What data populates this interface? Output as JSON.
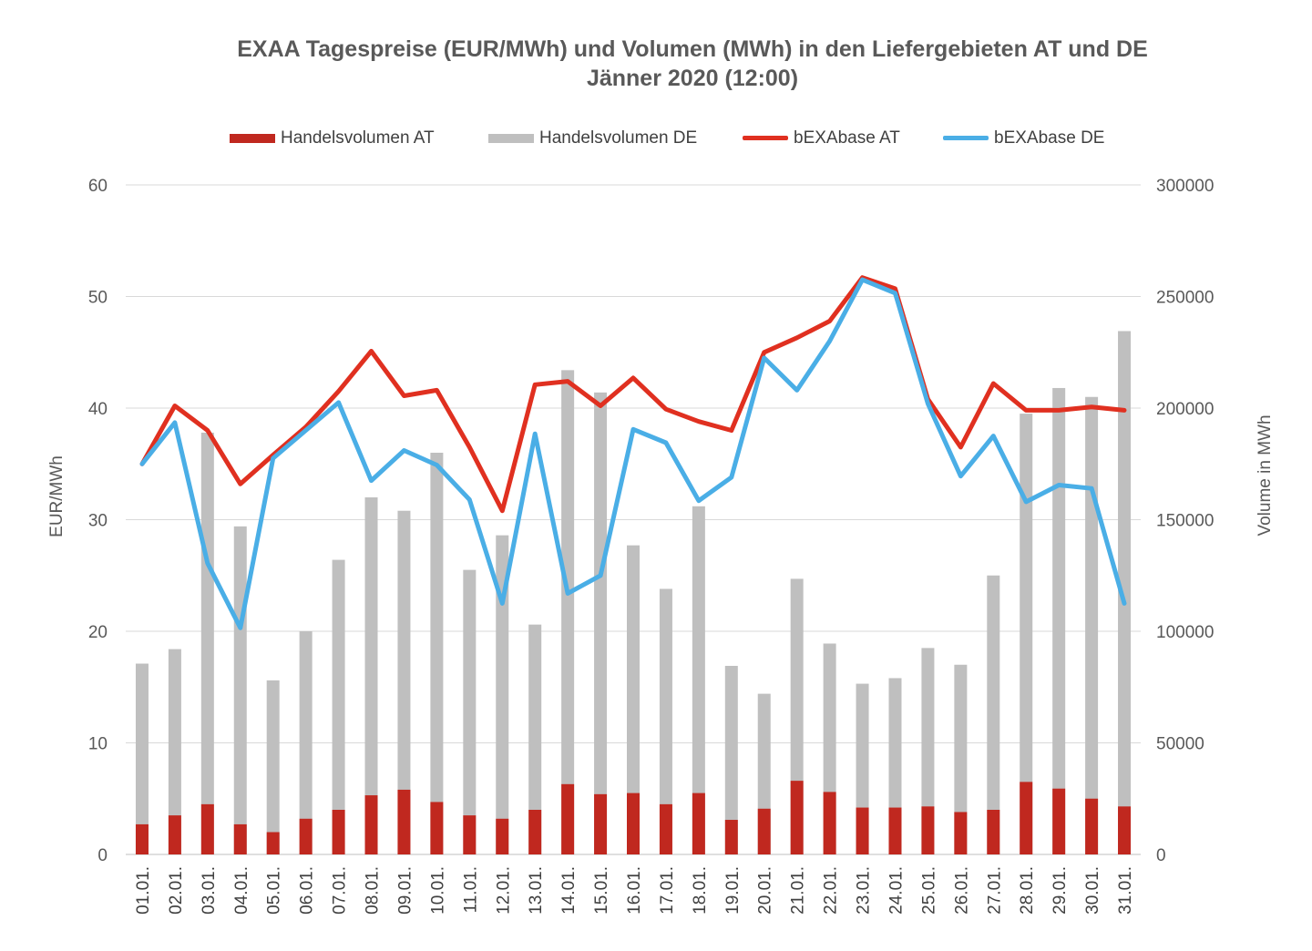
{
  "chart_data": {
    "type": "bar",
    "title": "EXAA Tagespreise (EUR/MWh) und Volumen (MWh) in den Liefergebieten AT und DE",
    "subtitle": "Jänner 2020 (12:00)",
    "ylabel": "EUR/MWh",
    "y2label": "Volume in MWh",
    "ylim": [
      0,
      60
    ],
    "y2lim": [
      0,
      300000
    ],
    "yticks": [
      "0",
      "10",
      "20",
      "30",
      "40",
      "50",
      "60"
    ],
    "y2ticks": [
      "0",
      "50000",
      "100000",
      "150000",
      "200000",
      "250000",
      "300000"
    ],
    "grid": "horizontal",
    "legend_position": "top",
    "categories": [
      "01.01.",
      "02.01.",
      "03.01.",
      "04.01.",
      "05.01.",
      "06.01.",
      "07.01.",
      "08.01.",
      "09.01.",
      "10.01.",
      "11.01.",
      "12.01.",
      "13.01.",
      "14.01.",
      "15.01.",
      "16.01.",
      "17.01.",
      "18.01.",
      "19.01.",
      "20.01.",
      "21.01.",
      "22.01.",
      "23.01.",
      "24.01.",
      "25.01.",
      "26.01.",
      "27.01.",
      "28.01.",
      "29.01.",
      "30.01.",
      "31.01."
    ],
    "series": [
      {
        "name": "Handelsvolumen AT",
        "kind": "bar",
        "axis": "right",
        "color": "#c0281f",
        "values": [
          13500,
          17500,
          22500,
          13500,
          10000,
          16000,
          20000,
          26500,
          29000,
          23500,
          17500,
          16000,
          20000,
          31500,
          27000,
          27500,
          22500,
          27500,
          15500,
          20500,
          33000,
          28000,
          21000,
          21000,
          21500,
          19000,
          20000,
          32500,
          29500,
          25000,
          21500
        ]
      },
      {
        "name": "Handelsvolumen DE",
        "kind": "bar",
        "axis": "right",
        "color": "#bfbfbf",
        "values": [
          85500,
          92000,
          189000,
          147000,
          78000,
          100000,
          132000,
          160000,
          154000,
          180000,
          127500,
          143000,
          103000,
          217000,
          207000,
          138500,
          119000,
          156000,
          84500,
          72000,
          123500,
          94500,
          76500,
          79000,
          92500,
          85000,
          125000,
          197500,
          209000,
          205000,
          234500
        ]
      },
      {
        "name": "bEXAbase AT",
        "kind": "line",
        "axis": "left",
        "color": "#e03020",
        "values": [
          35.0,
          40.2,
          38.0,
          33.2,
          35.8,
          38.3,
          41.5,
          45.1,
          41.1,
          41.6,
          36.5,
          30.8,
          42.1,
          42.4,
          40.2,
          42.7,
          39.9,
          38.8,
          38.0,
          45.0,
          46.3,
          47.8,
          51.7,
          50.7,
          40.8,
          36.5,
          42.2,
          39.8,
          39.8,
          40.1,
          39.8
        ]
      },
      {
        "name": "bEXAbase DE",
        "kind": "line",
        "axis": "left",
        "color": "#4aaee6",
        "values": [
          35.0,
          38.7,
          26.1,
          20.3,
          35.5,
          38.0,
          40.5,
          33.5,
          36.2,
          34.9,
          31.8,
          22.5,
          37.7,
          23.4,
          25.0,
          38.1,
          36.9,
          31.7,
          33.8,
          44.5,
          41.6,
          46.0,
          51.5,
          50.3,
          40.4,
          33.9,
          37.5,
          31.6,
          33.1,
          32.8,
          22.5
        ]
      }
    ]
  }
}
